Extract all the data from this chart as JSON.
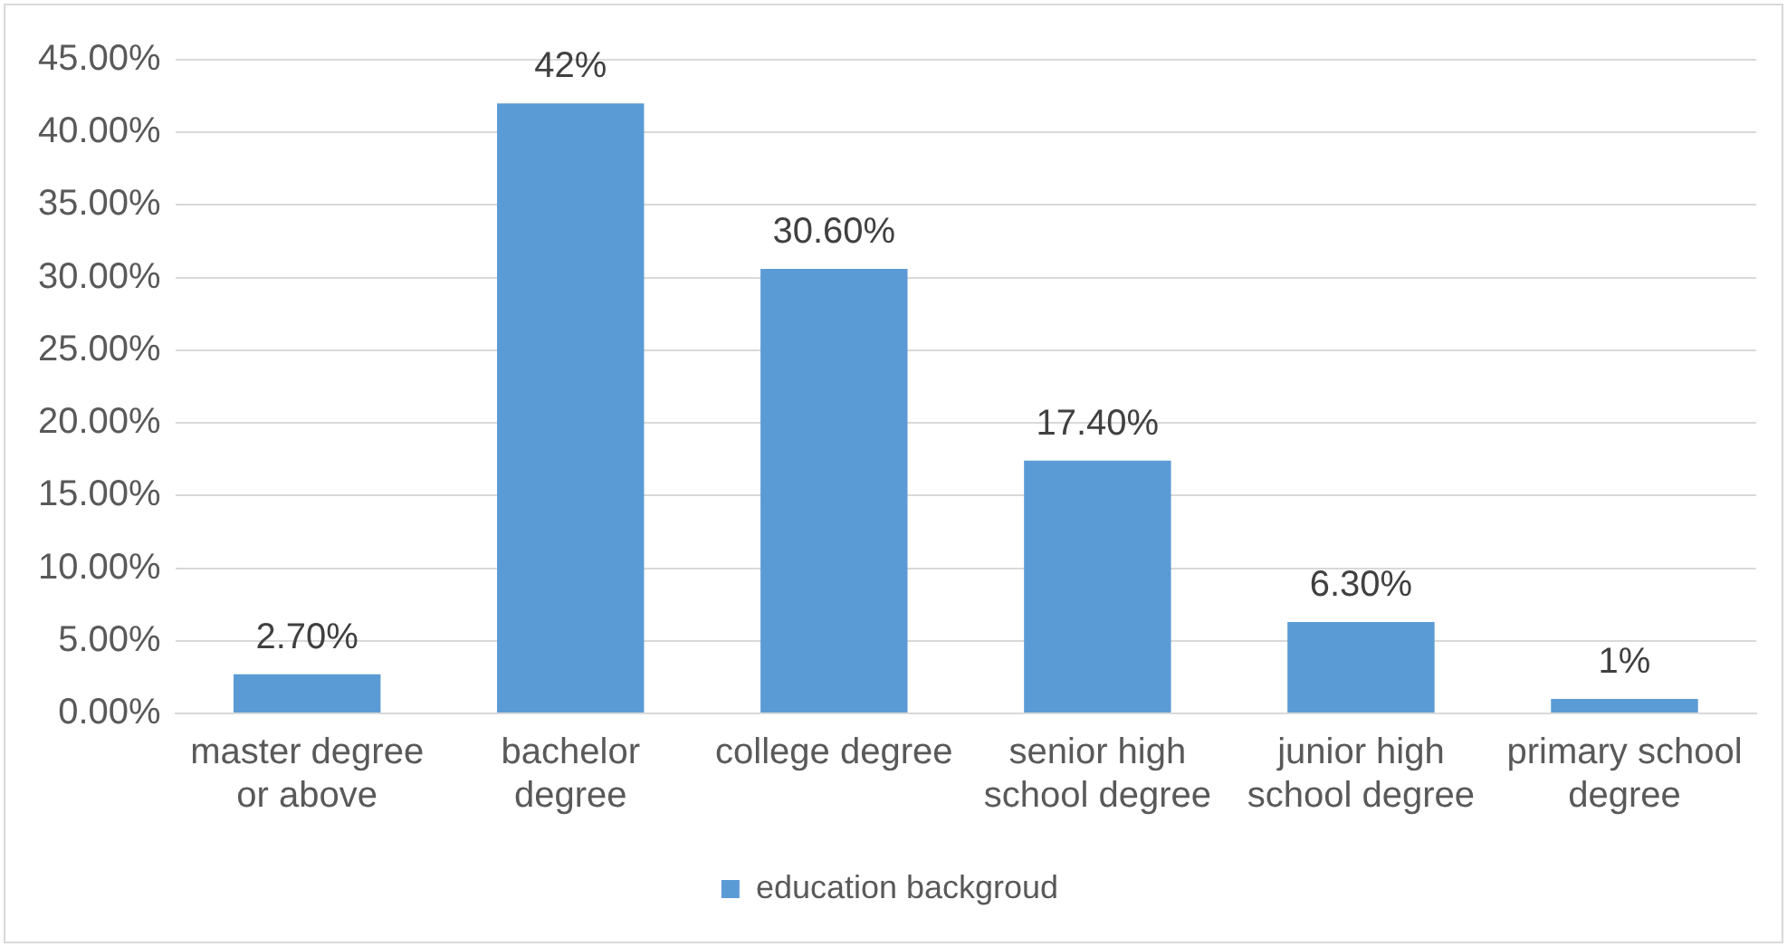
{
  "chart_data": {
    "type": "bar",
    "categories": [
      "master degree or above",
      "bachelor degree",
      "college degree",
      "senior high school degree",
      "junior high school degree",
      "primary school degree"
    ],
    "series": [
      {
        "name": "education backgroud",
        "color": "#5b9bd5",
        "values": [
          2.7,
          42,
          30.6,
          17.4,
          6.3,
          1
        ],
        "value_labels": [
          "2.70%",
          "42%",
          "30.60%",
          "17.40%",
          "6.30%",
          "1%"
        ]
      }
    ],
    "ylim": [
      0,
      45
    ],
    "yticks": [
      {
        "value": 0,
        "label": "0.00%"
      },
      {
        "value": 5,
        "label": "5.00%"
      },
      {
        "value": 10,
        "label": "10.00%"
      },
      {
        "value": 15,
        "label": "15.00%"
      },
      {
        "value": 20,
        "label": "20.00%"
      },
      {
        "value": 25,
        "label": "25.00%"
      },
      {
        "value": 30,
        "label": "30.00%"
      },
      {
        "value": 35,
        "label": "35.00%"
      },
      {
        "value": 40,
        "label": "40.00%"
      },
      {
        "value": 45,
        "label": "45.00%"
      }
    ],
    "grid": "y",
    "legend": "bottom"
  }
}
